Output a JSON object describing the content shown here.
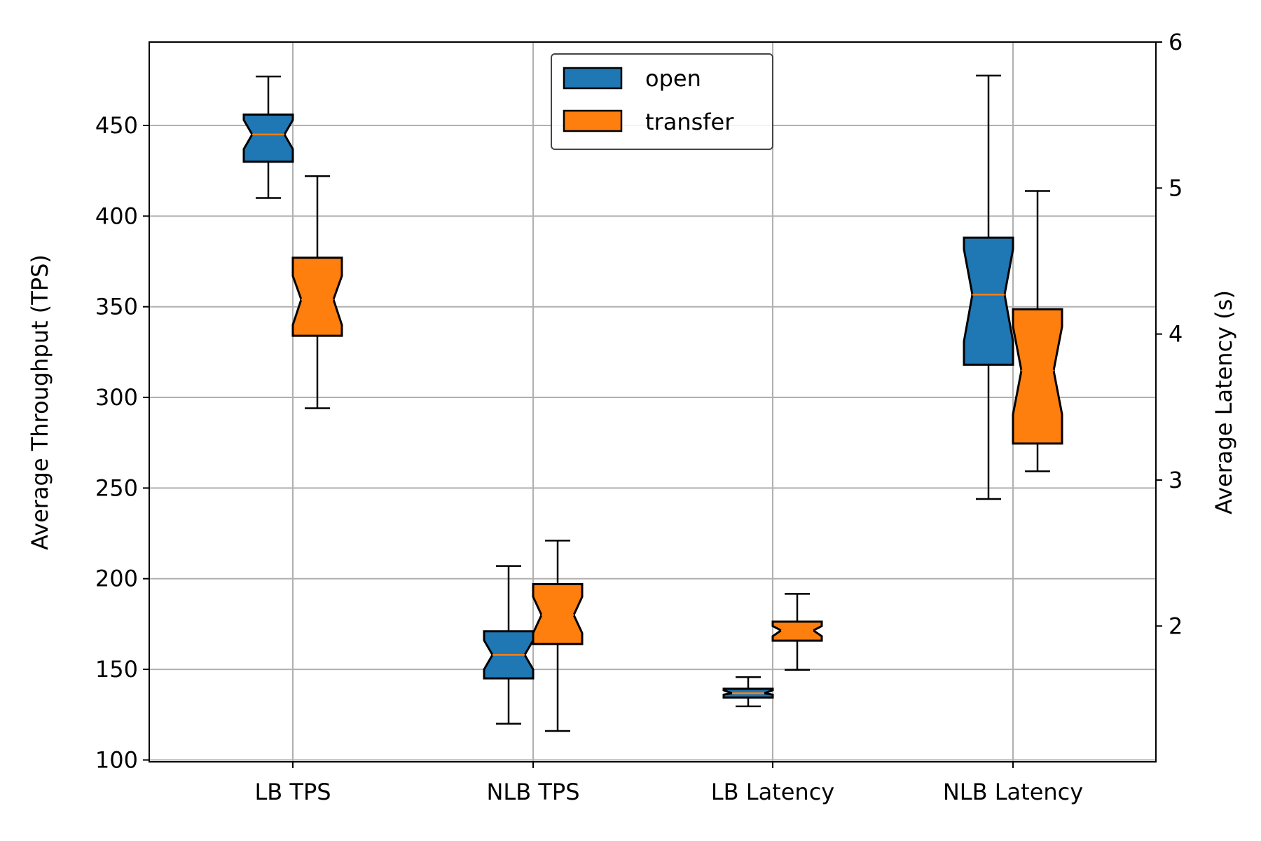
{
  "chart_data": {
    "type": "boxplot",
    "title": "",
    "categories": [
      "LB TPS",
      "NLB TPS",
      "LB Latency",
      "NLB Latency"
    ],
    "ylabel_left": "Average Throughput (TPS)",
    "ylabel_right": "Average Latency (s)",
    "ylim_left": [
      99,
      496
    ],
    "ylim_right": [
      1.07,
      6.0
    ],
    "yticks_left": [
      100,
      150,
      200,
      250,
      300,
      350,
      400,
      450
    ],
    "yticks_right": [
      2,
      3,
      4,
      5,
      6
    ],
    "grid": true,
    "legend_position": "top-center",
    "series": [
      {
        "name": "open",
        "color": "#1f77b4",
        "boxes": [
          {
            "category": "LB TPS",
            "axis": "left",
            "whislo": 410,
            "q1": 430,
            "med": 445,
            "q3": 456,
            "whishi": 477,
            "notchlo": 437,
            "notchhi": 453
          },
          {
            "category": "NLB TPS",
            "axis": "left",
            "whislo": 120,
            "q1": 145,
            "med": 158,
            "q3": 171,
            "whishi": 207,
            "notchlo": 150,
            "notchhi": 166
          },
          {
            "category": "LB Latency",
            "axis": "right",
            "whislo": 1.45,
            "q1": 1.51,
            "med": 1.54,
            "q3": 1.57,
            "whishi": 1.65,
            "notchlo": 1.53,
            "notchhi": 1.56
          },
          {
            "category": "NLB Latency",
            "axis": "right",
            "whislo": 2.87,
            "q1": 3.79,
            "med": 4.27,
            "q3": 4.66,
            "whishi": 5.77,
            "notchlo": 3.95,
            "notchhi": 4.58
          }
        ]
      },
      {
        "name": "transfer",
        "color": "#ff7f0e",
        "boxes": [
          {
            "category": "LB TPS",
            "axis": "left",
            "whislo": 294,
            "q1": 334,
            "med": 354,
            "q3": 377,
            "whishi": 422,
            "notchlo": 340,
            "notchhi": 367
          },
          {
            "category": "NLB TPS",
            "axis": "left",
            "whislo": 116,
            "q1": 164,
            "med": 180,
            "q3": 197,
            "whishi": 221,
            "notchlo": 170,
            "notchhi": 190
          },
          {
            "category": "LB Latency",
            "axis": "right",
            "whislo": 1.7,
            "q1": 1.9,
            "med": 1.97,
            "q3": 2.03,
            "whishi": 2.22,
            "notchlo": 1.93,
            "notchhi": 2.0
          },
          {
            "category": "NLB Latency",
            "axis": "right",
            "whislo": 3.06,
            "q1": 3.25,
            "med": 3.75,
            "q3": 4.17,
            "whishi": 4.98,
            "notchlo": 3.45,
            "notchhi": 4.05
          }
        ]
      }
    ]
  }
}
